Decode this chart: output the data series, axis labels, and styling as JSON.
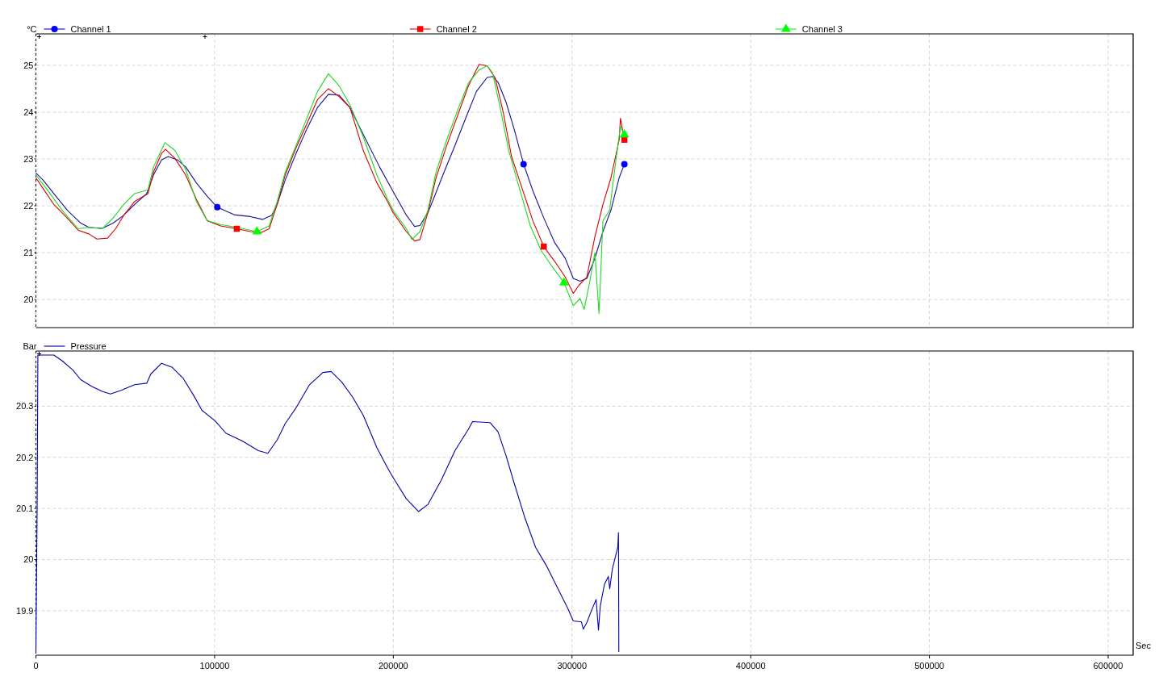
{
  "chart_data": [
    {
      "type": "line",
      "ylabel": "°C",
      "legend": "top",
      "grid": true,
      "tick_labels": "y",
      "xlim": [
        0,
        614000
      ],
      "xticks": [
        0,
        100000,
        200000,
        300000,
        400000,
        500000,
        600000
      ],
      "ylim": [
        19.4,
        25.67
      ],
      "yticks": [
        20,
        21,
        22,
        23,
        24,
        25
      ],
      "series": [
        {
          "color": "#12129c",
          "x": [
            0,
            4000,
            10000,
            17500,
            25100,
            29600,
            37100,
            43200,
            49200,
            55200,
            62000,
            65800,
            70300,
            74000,
            79300,
            83800,
            89800,
            95900,
            101500,
            110900,
            120000,
            126800,
            132000,
            135000,
            139500,
            145600,
            151600,
            157600,
            163700,
            169700,
            175700,
            183200,
            192300,
            199800,
            207300,
            211900,
            214900,
            219400,
            222400,
            228400,
            234500,
            240500,
            246500,
            252500,
            255500,
            258600,
            263100,
            267600,
            272900,
            278100,
            284200,
            290200,
            296200,
            300700,
            304500,
            308300,
            312800,
            317300,
            321800,
            326400,
            329300
          ],
          "values": [
            22.7,
            22.55,
            22.26,
            21.91,
            21.63,
            21.54,
            21.52,
            21.63,
            21.8,
            22.03,
            22.26,
            22.66,
            22.98,
            23.05,
            22.98,
            22.83,
            22.49,
            22.2,
            21.97,
            21.81,
            21.77,
            21.71,
            21.8,
            22.03,
            22.55,
            23.12,
            23.64,
            24.1,
            24.38,
            24.36,
            24.1,
            23.52,
            22.83,
            22.31,
            21.8,
            21.56,
            21.58,
            21.86,
            22.14,
            22.72,
            23.29,
            23.87,
            24.44,
            24.74,
            24.76,
            24.64,
            24.21,
            23.64,
            22.89,
            22.32,
            21.74,
            21.22,
            20.88,
            20.45,
            20.39,
            20.45,
            20.88,
            21.45,
            21.91,
            22.6,
            22.89
          ]
        },
        {
          "color": "#d80000",
          "x": [
            0,
            4000,
            10000,
            17500,
            23600,
            29600,
            34100,
            40100,
            44600,
            49200,
            55200,
            62700,
            65800,
            70300,
            72500,
            77800,
            83800,
            89800,
            95900,
            103400,
            112400,
            120000,
            126000,
            130500,
            135000,
            139500,
            145600,
            151600,
            157600,
            163700,
            169700,
            175700,
            183200,
            190800,
            196800,
            199800,
            207300,
            211900,
            214900,
            219400,
            223900,
            229900,
            236000,
            242000,
            248000,
            252500,
            257000,
            261600,
            266100,
            272100,
            278100,
            284200,
            290200,
            296200,
            300700,
            303800,
            308300,
            312800,
            317300,
            321800,
            326400,
            327100,
            329300
          ],
          "values": [
            22.6,
            22.37,
            22.03,
            21.74,
            21.48,
            21.4,
            21.29,
            21.31,
            21.51,
            21.8,
            22.09,
            22.26,
            22.72,
            23.12,
            23.21,
            23.01,
            22.66,
            22.14,
            21.68,
            21.57,
            21.51,
            21.45,
            21.43,
            21.51,
            22.03,
            22.66,
            23.24,
            23.75,
            24.27,
            24.5,
            24.33,
            24.1,
            23.18,
            22.49,
            22.09,
            21.86,
            21.45,
            21.25,
            21.28,
            21.86,
            22.6,
            23.29,
            23.93,
            24.56,
            25.02,
            24.99,
            24.73,
            23.98,
            23.06,
            22.37,
            21.68,
            21.13,
            20.82,
            20.48,
            20.13,
            20.3,
            20.48,
            21.34,
            22.03,
            22.6,
            23.41,
            23.87,
            23.41
          ]
        },
        {
          "color": "#22d822",
          "x": [
            0,
            7000,
            14600,
            23600,
            29600,
            37100,
            43200,
            49200,
            55200,
            62700,
            65800,
            72200,
            77800,
            83800,
            89800,
            95900,
            103400,
            112400,
            123700,
            130500,
            135000,
            139500,
            145600,
            151600,
            157600,
            163700,
            169700,
            175700,
            183200,
            190800,
            196800,
            199800,
            207300,
            210400,
            214900,
            219400,
            223900,
            229900,
            236000,
            242000,
            248000,
            252500,
            255500,
            260100,
            264600,
            270600,
            276700,
            282700,
            288700,
            295500,
            300700,
            304500,
            306800,
            309800,
            312800,
            315100,
            317300,
            321100,
            323300,
            327100,
            329300
          ],
          "values": [
            22.66,
            22.31,
            21.91,
            21.51,
            21.54,
            21.51,
            21.74,
            22.03,
            22.26,
            22.34,
            22.83,
            23.35,
            23.18,
            22.78,
            22.09,
            21.68,
            21.6,
            21.54,
            21.45,
            21.57,
            22.09,
            22.72,
            23.29,
            23.87,
            24.44,
            24.82,
            24.56,
            24.16,
            23.47,
            22.66,
            22.14,
            21.91,
            21.51,
            21.28,
            21.45,
            21.91,
            22.72,
            23.41,
            24.04,
            24.62,
            24.9,
            24.99,
            24.84,
            24.04,
            23.18,
            22.37,
            21.57,
            21.05,
            20.71,
            20.36,
            19.87,
            20.02,
            19.79,
            20.36,
            21.0,
            19.7,
            21.68,
            21.91,
            22.6,
            23.7,
            23.52
          ]
        },
        {
          "type": "scatter",
          "name": "Channel 1",
          "color": "#0000ff",
          "marker": "circle",
          "x": [
            101500,
            272900,
            329300
          ],
          "values": [
            21.97,
            22.89,
            22.89
          ]
        },
        {
          "type": "scatter",
          "name": "Channel 2",
          "color": "#ff0000",
          "marker": "square",
          "x": [
            112400,
            284200,
            329300
          ],
          "values": [
            21.51,
            21.13,
            23.41
          ]
        },
        {
          "type": "scatter",
          "name": "Channel 3",
          "color": "#00ff00",
          "marker": "triangle",
          "x": [
            123700,
            295500,
            329300
          ],
          "values": [
            21.45,
            20.36,
            23.52
          ]
        }
      ]
    },
    {
      "type": "line",
      "ylabel": "Bar",
      "xlabel": "Sec",
      "legend": "top",
      "grid": true,
      "xlim": [
        0,
        614000
      ],
      "xticks": [
        0,
        100000,
        200000,
        300000,
        400000,
        500000,
        600000
      ],
      "ylim": [
        19.813,
        20.408
      ],
      "yticks": [
        19.9,
        20,
        20.1,
        20.2,
        20.3
      ],
      "series": [
        {
          "name": "Pressure",
          "color": "#0000a8",
          "x": [
            0,
            700,
            1100,
            10000,
            14600,
            20600,
            25100,
            31100,
            37100,
            41700,
            47700,
            55200,
            62000,
            64300,
            70300,
            76300,
            82300,
            88300,
            92900,
            100400,
            106400,
            115500,
            124500,
            129800,
            135000,
            139500,
            145600,
            153100,
            160600,
            165200,
            171200,
            177200,
            183200,
            190800,
            196800,
            199800,
            207300,
            214100,
            219400,
            226900,
            234500,
            242000,
            244300,
            254100,
            258600,
            263100,
            267600,
            273600,
            279600,
            285700,
            291700,
            297700,
            300700,
            305300,
            306300,
            308300,
            311300,
            313500,
            314800,
            315800,
            318100,
            320300,
            321100,
            322600,
            325600,
            326000,
            326200
          ],
          "values": [
            19.82,
            20.11,
            20.4,
            20.4,
            20.389,
            20.371,
            20.352,
            20.339,
            20.329,
            20.324,
            20.331,
            20.342,
            20.345,
            20.363,
            20.384,
            20.376,
            20.355,
            20.321,
            20.292,
            20.271,
            20.247,
            20.232,
            20.213,
            20.208,
            20.234,
            20.266,
            20.297,
            20.342,
            20.366,
            20.368,
            20.347,
            20.318,
            20.282,
            20.219,
            20.179,
            20.161,
            20.119,
            20.094,
            20.108,
            20.156,
            20.213,
            20.255,
            20.27,
            20.268,
            20.25,
            20.203,
            20.15,
            20.082,
            20.024,
            19.988,
            19.946,
            19.904,
            19.88,
            19.878,
            19.864,
            19.877,
            19.904,
            19.922,
            19.862,
            19.909,
            19.951,
            19.967,
            19.943,
            19.982,
            20.024,
            20.053,
            19.82
          ]
        }
      ]
    }
  ]
}
